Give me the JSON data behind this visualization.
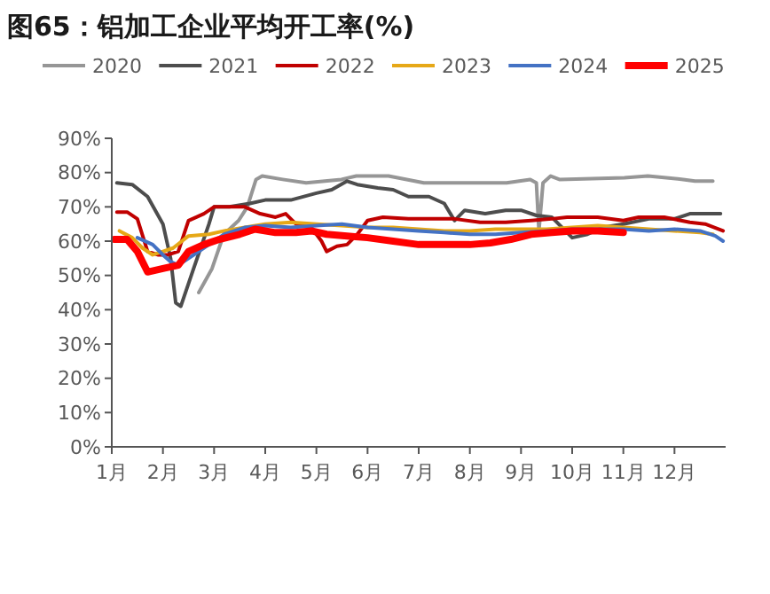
{
  "chart_data": {
    "type": "line",
    "title": "图65：铝加工企业平均开工率(%)",
    "legend": "top",
    "grid": false,
    "line_style": "solid",
    "marker": "none",
    "xlim": [
      1,
      13
    ],
    "xticks": [
      {
        "value": 1,
        "label": "1月"
      },
      {
        "value": 2,
        "label": "2月"
      },
      {
        "value": 3,
        "label": "3月"
      },
      {
        "value": 4,
        "label": "4月"
      },
      {
        "value": 5,
        "label": "5月"
      },
      {
        "value": 6,
        "label": "6月"
      },
      {
        "value": 7,
        "label": "7月"
      },
      {
        "value": 8,
        "label": "8月"
      },
      {
        "value": 9,
        "label": "9月"
      },
      {
        "value": 10,
        "label": "10月"
      },
      {
        "value": 11,
        "label": "11月"
      },
      {
        "value": 12,
        "label": "12月"
      }
    ],
    "ylim": [
      0,
      90
    ],
    "yticks": [
      {
        "value": 0,
        "label": "0%"
      },
      {
        "value": 10,
        "label": "10%"
      },
      {
        "value": 20,
        "label": "20%"
      },
      {
        "value": 30,
        "label": "30%"
      },
      {
        "value": 40,
        "label": "40%"
      },
      {
        "value": 50,
        "label": "50%"
      },
      {
        "value": 60,
        "label": "60%"
      },
      {
        "value": 70,
        "label": "70%"
      },
      {
        "value": 80,
        "label": "80%"
      },
      {
        "value": 90,
        "label": "90%"
      }
    ],
    "series": [
      {
        "name": "2020",
        "color": "#969696",
        "x": [
          2.7,
          2.96,
          3.19,
          3.48,
          3.65,
          3.82,
          3.94,
          4.34,
          4.8,
          5.49,
          5.78,
          6.41,
          7.1,
          7.57,
          8.72,
          9.18,
          9.3,
          9.35,
          9.43,
          9.58,
          9.75,
          11.02,
          11.48,
          12.17,
          12.4,
          12.75
        ],
        "values": [
          45,
          52,
          62,
          66,
          70,
          78,
          79,
          78,
          77,
          78,
          79,
          79,
          77,
          77,
          77,
          78,
          77,
          63,
          77,
          79,
          78,
          78.5,
          79,
          78,
          77.5,
          77.5
        ]
      },
      {
        "name": "2021",
        "color": "#4d4d4d",
        "x": [
          1.1,
          1.4,
          1.7,
          2.0,
          2.15,
          2.25,
          2.35,
          2.6,
          2.9,
          3.0,
          3.3,
          3.7,
          4.0,
          4.5,
          5.0,
          5.3,
          5.6,
          5.8,
          6.2,
          6.5,
          6.8,
          7.2,
          7.5,
          7.7,
          7.9,
          8.3,
          8.7,
          9.0,
          9.3,
          9.6,
          9.8,
          10.0,
          10.3,
          10.6,
          11.0,
          11.5,
          12.0,
          12.3,
          12.9
        ],
        "values": [
          77,
          76.5,
          73,
          65,
          55,
          42,
          41,
          52,
          65,
          70,
          70,
          71,
          72,
          72,
          74,
          75,
          77.5,
          76.5,
          75.5,
          75,
          73,
          73,
          71,
          66,
          69,
          68,
          69,
          69,
          67.5,
          67,
          64,
          61,
          62,
          64,
          65,
          66.5,
          66.5,
          68,
          68
        ]
      },
      {
        "name": "2022",
        "color": "#c00000",
        "x": [
          1.1,
          1.3,
          1.5,
          1.7,
          1.9,
          2.1,
          2.3,
          2.5,
          2.8,
          3.0,
          3.3,
          3.6,
          3.9,
          4.2,
          4.4,
          4.6,
          4.9,
          5.1,
          5.2,
          5.4,
          5.6,
          5.8,
          6.0,
          6.3,
          6.8,
          7.3,
          7.7,
          8.2,
          8.7,
          9.2,
          9.6,
          9.9,
          10.5,
          11.0,
          11.3,
          11.8,
          12.3,
          12.6,
          12.95
        ],
        "values": [
          68.5,
          68.5,
          66.5,
          57,
          56,
          56,
          57,
          66,
          68,
          70,
          70,
          70,
          68,
          67,
          68,
          65,
          64,
          60,
          57,
          58.5,
          59,
          62,
          66,
          67,
          66.5,
          66.5,
          66.5,
          65.5,
          65.5,
          66,
          66.5,
          67,
          67,
          66,
          67,
          67,
          65.5,
          65,
          63
        ]
      },
      {
        "name": "2023",
        "color": "#e6a817",
        "x": [
          1.15,
          1.4,
          1.6,
          1.8,
          2.0,
          2.2,
          2.5,
          2.9,
          3.2,
          3.6,
          4.0,
          4.5,
          5.0,
          5.5,
          6.0,
          6.5,
          7.0,
          7.5,
          8.0,
          8.5,
          9.0,
          9.5,
          10.0,
          10.5,
          11.0,
          11.5,
          12.0,
          12.5,
          12.75
        ],
        "values": [
          63,
          61,
          58,
          56,
          57,
          58,
          61.5,
          62,
          63,
          64,
          65,
          65.5,
          65,
          64.5,
          64,
          64,
          63.5,
          63,
          63,
          63.5,
          63.5,
          63.5,
          64,
          64.5,
          64,
          63.5,
          63,
          62.5,
          62
        ]
      },
      {
        "name": "2024",
        "color": "#4472c4",
        "x": [
          1.5,
          1.8,
          2.0,
          2.15,
          2.3,
          2.6,
          2.9,
          3.2,
          3.6,
          4.0,
          4.5,
          5.0,
          5.5,
          6.0,
          6.5,
          7.0,
          7.5,
          8.0,
          8.5,
          9.0,
          9.5,
          10.0,
          10.5,
          11.0,
          11.5,
          12.0,
          12.5,
          12.8,
          12.95
        ],
        "values": [
          61,
          59,
          56,
          54,
          53,
          56,
          59,
          62,
          64,
          64.5,
          64,
          64.5,
          65,
          64,
          63.5,
          63,
          62.5,
          62,
          62,
          62.5,
          63,
          63.5,
          63.5,
          63.5,
          63,
          63.5,
          63,
          61.5,
          60
        ]
      },
      {
        "name": "2025",
        "color": "#ff0000",
        "x": [
          1.05,
          1.3,
          1.5,
          1.7,
          2.0,
          2.3,
          2.5,
          2.8,
          3.1,
          3.5,
          3.8,
          4.2,
          4.6,
          4.9,
          5.2,
          5.6,
          6.0,
          6.5,
          7.0,
          7.5,
          8.0,
          8.4,
          8.8,
          9.2,
          9.6,
          10.0,
          10.5,
          11.0
        ],
        "values": [
          60.5,
          60.5,
          57,
          51,
          52,
          53,
          57,
          59,
          60.5,
          62,
          63.5,
          62.5,
          62.5,
          63,
          62,
          61.5,
          61,
          60,
          59,
          59,
          59,
          59.5,
          60.5,
          62,
          62.5,
          63,
          63,
          62.5
        ]
      }
    ]
  }
}
